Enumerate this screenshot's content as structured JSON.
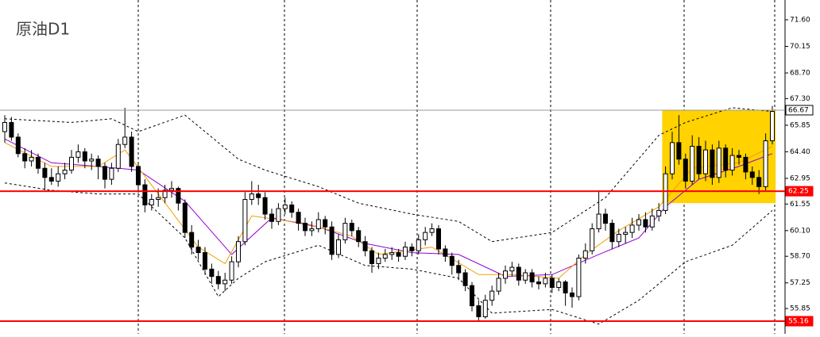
{
  "chart_data": {
    "type": "candlestick",
    "title": "原油D1",
    "ylim": [
      54.47,
      72.68
    ],
    "yticks": [
      {
        "value": 71.6,
        "label": "71.60"
      },
      70.15,
      {
        "value": 68.7,
        "label": "68.70"
      },
      {
        "value": 67.3,
        "label": "67.30"
      },
      65.85,
      {
        "value": 64.4,
        "label": "64.40"
      },
      62.95,
      61.55,
      {
        "value": 60.1,
        "label": "60.10"
      },
      {
        "value": 58.7,
        "label": "58.70"
      },
      57.25,
      55.85
    ],
    "levels": [
      {
        "value": 66.67,
        "color": "#999999"
      },
      {
        "value": 62.25,
        "color": "#ff0000"
      },
      {
        "value": 55.16,
        "color": "#ff0000"
      }
    ],
    "highlight": {
      "x": [
        98.5,
        115.5
      ],
      "y": [
        61.6,
        66.67
      ],
      "color": "#ffd200"
    },
    "ohlc": [
      [
        65.5,
        66.4,
        64.9,
        66.0
      ],
      [
        66.0,
        66.3,
        65.0,
        65.2
      ],
      [
        65.2,
        65.4,
        64.1,
        64.3
      ],
      [
        64.3,
        64.6,
        63.5,
        63.9
      ],
      [
        63.9,
        64.5,
        63.6,
        64.1
      ],
      [
        64.1,
        64.3,
        63.2,
        63.5
      ],
      [
        63.5,
        63.8,
        62.3,
        63.0
      ],
      [
        63.0,
        63.5,
        62.6,
        62.8
      ],
      [
        62.8,
        63.6,
        62.5,
        63.2
      ],
      [
        63.2,
        63.8,
        62.9,
        63.4
      ],
      [
        63.4,
        64.5,
        63.2,
        64.1
      ],
      [
        64.1,
        64.8,
        63.8,
        64.4
      ],
      [
        64.4,
        64.6,
        63.5,
        63.9
      ],
      [
        63.9,
        64.3,
        63.4,
        64.0
      ],
      [
        64.0,
        64.2,
        62.9,
        63.6
      ],
      [
        63.6,
        63.8,
        62.4,
        62.9
      ],
      [
        62.9,
        63.8,
        62.6,
        63.5
      ],
      [
        63.5,
        65.1,
        63.3,
        64.8
      ],
      [
        64.8,
        66.8,
        64.6,
        65.2
      ],
      [
        65.2,
        65.5,
        63.3,
        63.6
      ],
      [
        63.6,
        63.8,
        62.2,
        62.6
      ],
      [
        62.6,
        62.9,
        61.1,
        61.5
      ],
      [
        61.5,
        62.1,
        61.2,
        61.8
      ],
      [
        61.8,
        62.4,
        61.4,
        61.9
      ],
      [
        61.9,
        62.6,
        61.6,
        62.3
      ],
      [
        62.3,
        62.8,
        61.9,
        62.4
      ],
      [
        62.4,
        62.5,
        61.2,
        61.6
      ],
      [
        61.6,
        61.8,
        59.7,
        60.0
      ],
      [
        60.0,
        60.4,
        58.8,
        59.2
      ],
      [
        59.2,
        59.6,
        58.5,
        58.9
      ],
      [
        58.9,
        59.2,
        57.7,
        58.0
      ],
      [
        58.0,
        58.3,
        57.2,
        57.6
      ],
      [
        57.6,
        57.9,
        56.9,
        57.2
      ],
      [
        57.2,
        57.8,
        56.8,
        57.4
      ],
      [
        57.4,
        58.7,
        57.2,
        58.4
      ],
      [
        58.4,
        59.8,
        58.1,
        59.5
      ],
      [
        59.5,
        62.2,
        59.3,
        61.8
      ],
      [
        61.8,
        62.8,
        61.5,
        62.1
      ],
      [
        62.1,
        62.6,
        61.5,
        61.9
      ],
      [
        61.9,
        62.2,
        60.7,
        61.0
      ],
      [
        61.0,
        61.3,
        60.2,
        60.6
      ],
      [
        60.6,
        61.6,
        60.4,
        61.3
      ],
      [
        61.3,
        61.9,
        61.0,
        61.5
      ],
      [
        61.5,
        61.7,
        60.8,
        61.1
      ],
      [
        61.1,
        61.3,
        60.1,
        60.5
      ],
      [
        60.5,
        60.8,
        59.8,
        60.1
      ],
      [
        60.1,
        60.6,
        59.8,
        60.2
      ],
      [
        60.2,
        61.1,
        60.0,
        60.7
      ],
      [
        60.7,
        60.9,
        59.9,
        60.3
      ],
      [
        60.3,
        60.6,
        58.5,
        58.8
      ],
      [
        58.8,
        59.9,
        58.6,
        59.6
      ],
      [
        59.6,
        60.8,
        59.4,
        60.5
      ],
      [
        60.5,
        60.7,
        59.8,
        60.1
      ],
      [
        60.1,
        60.3,
        59.2,
        59.5
      ],
      [
        59.5,
        59.8,
        58.7,
        59.0
      ],
      [
        59.0,
        59.2,
        57.8,
        58.3
      ],
      [
        58.3,
        58.9,
        58.0,
        58.6
      ],
      [
        58.6,
        59.1,
        58.4,
        58.8
      ],
      [
        58.8,
        59.2,
        58.5,
        58.9
      ],
      [
        58.9,
        59.1,
        58.4,
        58.7
      ],
      [
        58.7,
        59.5,
        58.5,
        59.2
      ],
      [
        59.2,
        59.4,
        58.7,
        59.0
      ],
      [
        59.0,
        59.9,
        58.8,
        59.6
      ],
      [
        59.6,
        60.3,
        59.3,
        60.0
      ],
      [
        60.0,
        60.5,
        59.8,
        60.2
      ],
      [
        60.2,
        60.4,
        58.8,
        59.1
      ],
      [
        59.1,
        59.3,
        58.4,
        58.7
      ],
      [
        58.7,
        58.9,
        57.7,
        58.2
      ],
      [
        58.2,
        58.5,
        57.4,
        57.8
      ],
      [
        57.8,
        58.0,
        56.8,
        57.1
      ],
      [
        57.1,
        57.3,
        55.7,
        56.0
      ],
      [
        56.0,
        56.3,
        55.16,
        55.4
      ],
      [
        55.4,
        56.6,
        55.3,
        56.3
      ],
      [
        56.3,
        57.1,
        56.0,
        56.8
      ],
      [
        56.8,
        57.8,
        56.6,
        57.5
      ],
      [
        57.5,
        58.2,
        57.2,
        57.9
      ],
      [
        57.9,
        58.4,
        57.6,
        58.1
      ],
      [
        58.1,
        58.3,
        57.1,
        57.4
      ],
      [
        57.4,
        58.0,
        57.2,
        57.8
      ],
      [
        57.8,
        58.0,
        57.0,
        57.3
      ],
      [
        57.3,
        57.6,
        56.9,
        57.2
      ],
      [
        57.2,
        57.8,
        57.0,
        57.5
      ],
      [
        57.5,
        57.7,
        56.7,
        57.0
      ],
      [
        57.0,
        57.5,
        56.8,
        57.3
      ],
      [
        57.3,
        57.4,
        56.0,
        56.7
      ],
      [
        56.7,
        57.0,
        55.9,
        56.5
      ],
      [
        56.5,
        58.8,
        56.3,
        58.6
      ],
      [
        58.6,
        59.4,
        58.3,
        59.0
      ],
      [
        59.0,
        60.5,
        58.8,
        60.2
      ],
      [
        60.2,
        62.3,
        60.0,
        61.0
      ],
      [
        61.0,
        61.3,
        60.1,
        60.5
      ],
      [
        60.5,
        60.7,
        59.1,
        59.5
      ],
      [
        59.5,
        60.2,
        59.2,
        59.9
      ],
      [
        59.9,
        60.3,
        59.4,
        60.0
      ],
      [
        60.0,
        60.8,
        59.7,
        60.4
      ],
      [
        60.4,
        61.0,
        60.1,
        60.7
      ],
      [
        60.7,
        61.1,
        60.0,
        60.3
      ],
      [
        60.3,
        61.3,
        60.1,
        60.9
      ],
      [
        60.9,
        61.6,
        60.6,
        61.2
      ],
      [
        61.2,
        63.6,
        61.0,
        63.2
      ],
      [
        63.2,
        65.5,
        62.9,
        64.9
      ],
      [
        64.9,
        66.4,
        63.7,
        64.0
      ],
      [
        64.0,
        64.3,
        62.4,
        62.8
      ],
      [
        62.8,
        65.3,
        62.6,
        64.7
      ],
      [
        64.7,
        65.2,
        62.9,
        63.2
      ],
      [
        63.2,
        65.0,
        62.8,
        64.5
      ],
      [
        64.5,
        64.8,
        62.6,
        63.0
      ],
      [
        63.0,
        65.0,
        62.7,
        64.6
      ],
      [
        64.6,
        64.8,
        63.0,
        63.4
      ],
      [
        63.4,
        64.6,
        63.1,
        64.2
      ],
      [
        64.2,
        64.5,
        63.7,
        64.1
      ],
      [
        64.1,
        64.3,
        62.9,
        63.3
      ],
      [
        63.3,
        63.6,
        62.6,
        63.0
      ],
      [
        63.0,
        63.4,
        62.1,
        62.5
      ],
      [
        62.5,
        65.4,
        62.3,
        65.0
      ],
      [
        65.0,
        66.9,
        64.8,
        66.6
      ]
    ],
    "lines": [
      {
        "color": "#000000",
        "dash": true,
        "x": [
          0,
          10,
          16,
          20,
          27,
          35,
          39,
          47,
          53,
          61,
          68,
          73,
          82,
          90,
          98,
          102,
          109,
          115
        ],
        "values": [
          66.2,
          66.0,
          66.2,
          65.5,
          66.4,
          64.0,
          63.4,
          62.5,
          61.6,
          61.0,
          60.6,
          59.5,
          60.0,
          61.9,
          65.3,
          66.0,
          66.8,
          66.6
        ]
      },
      {
        "color": "#000000",
        "dash": true,
        "x": [
          0,
          7,
          14,
          20,
          27,
          32,
          35,
          39,
          47,
          54,
          61,
          68,
          73,
          82,
          89,
          95,
          102,
          109,
          115
        ],
        "values": [
          62.7,
          62.3,
          62.1,
          62.1,
          59.7,
          56.5,
          57.5,
          58.4,
          59.3,
          58.2,
          58.0,
          57.5,
          55.6,
          55.8,
          55.0,
          56.3,
          58.4,
          59.3,
          61.2
        ]
      },
      {
        "color": "#9400d3",
        "dash": false,
        "x": [
          0,
          7,
          14,
          20,
          27,
          34,
          40,
          47,
          54,
          61,
          68,
          75,
          82,
          89,
          95,
          99,
          104,
          110,
          115
        ],
        "values": [
          65.1,
          63.8,
          63.6,
          63.4,
          61.7,
          58.8,
          60.8,
          60.3,
          59.4,
          58.9,
          58.8,
          57.6,
          57.7,
          58.8,
          59.7,
          61.4,
          62.9,
          63.6,
          64.3
        ]
      },
      {
        "color": "#f0a000",
        "dash": false,
        "x": [
          0,
          7,
          14,
          18,
          23,
          29,
          33,
          37,
          45,
          52,
          56,
          64,
          71,
          76,
          83,
          87,
          92,
          98,
          103,
          110,
          115
        ],
        "values": [
          64.9,
          63.6,
          63.6,
          64.5,
          62.1,
          59.2,
          58.3,
          60.9,
          60.5,
          59.8,
          58.8,
          59.2,
          57.7,
          57.7,
          57.5,
          58.8,
          60.1,
          61.4,
          63.5,
          63.8,
          64.7
        ]
      }
    ]
  }
}
